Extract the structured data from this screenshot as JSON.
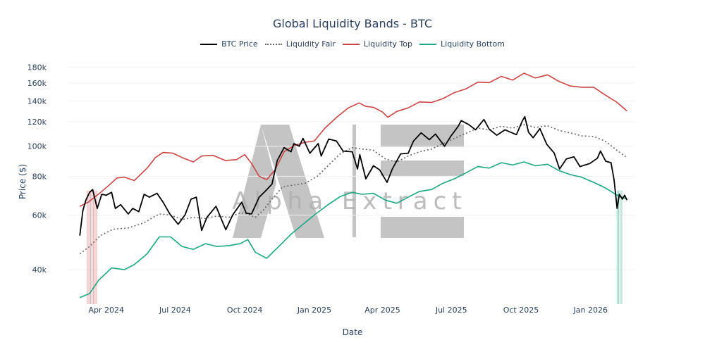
{
  "title": "Global Liquidity Bands - BTC",
  "legend": [
    {
      "name": "BTC Price",
      "color": "#000000",
      "style": "solid"
    },
    {
      "name": "Liquidity Fair",
      "color": "#666666",
      "style": "dotted"
    },
    {
      "name": "Liquidity Top",
      "color": "#cc4444",
      "style": "solid"
    },
    {
      "name": "Liquidity Bottom",
      "color": "#1aa882",
      "style": "solid"
    }
  ],
  "watermark": {
    "text": "Alpha Extract",
    "logo": "AE"
  },
  "chart_data": {
    "type": "line",
    "title": "Global Liquidity Bands - BTC",
    "xlabel": "Date",
    "ylabel": "Price ($)",
    "yscale": "log",
    "ylim": [
      30000,
      190000
    ],
    "xlim": [
      "2024-02-10",
      "2026-02-28"
    ],
    "x_ticks": [
      {
        "label": "Apr 2024",
        "date": "2024-04-01"
      },
      {
        "label": "Jul 2024",
        "date": "2024-07-01"
      },
      {
        "label": "Oct 2024",
        "date": "2024-10-01"
      },
      {
        "label": "Jan 2025",
        "date": "2025-01-01"
      },
      {
        "label": "Apr 2025",
        "date": "2025-04-01"
      },
      {
        "label": "Jul 2025",
        "date": "2025-07-01"
      },
      {
        "label": "Oct 2025",
        "date": "2025-10-01"
      },
      {
        "label": "Jan 2026",
        "date": "2026-01-01"
      }
    ],
    "y_ticks": [
      {
        "label": "40k",
        "value": 40000
      },
      {
        "label": "60k",
        "value": 60000
      },
      {
        "label": "80k",
        "value": 80000
      },
      {
        "label": "100k",
        "value": 100000
      },
      {
        "label": "120k",
        "value": 120000
      },
      {
        "label": "140k",
        "value": 140000
      },
      {
        "label": "160k",
        "value": 160000
      },
      {
        "label": "180k",
        "value": 180000
      }
    ],
    "highlight_bands": [
      {
        "start": "2024-03-07",
        "end": "2024-03-20",
        "color": "#e8a0a0",
        "meaning": "above top"
      },
      {
        "start": "2026-02-05",
        "end": "2026-02-12",
        "color": "#8fd6bd",
        "meaning": "below bottom"
      }
    ],
    "series": [
      {
        "name": "BTC Price",
        "color": "#000000",
        "style": "solid",
        "points": [
          [
            "2024-02-26",
            51500
          ],
          [
            "2024-03-01",
            62000
          ],
          [
            "2024-03-05",
            67000
          ],
          [
            "2024-03-10",
            71000
          ],
          [
            "2024-03-14",
            72500
          ],
          [
            "2024-03-20",
            63000
          ],
          [
            "2024-03-26",
            70000
          ],
          [
            "2024-04-01",
            69500
          ],
          [
            "2024-04-08",
            71000
          ],
          [
            "2024-04-13",
            63000
          ],
          [
            "2024-04-20",
            64800
          ],
          [
            "2024-04-30",
            60500
          ],
          [
            "2024-05-06",
            63000
          ],
          [
            "2024-05-14",
            61500
          ],
          [
            "2024-05-21",
            70000
          ],
          [
            "2024-05-28",
            68500
          ],
          [
            "2024-06-07",
            70500
          ],
          [
            "2024-06-15",
            66000
          ],
          [
            "2024-06-24",
            60500
          ],
          [
            "2024-07-05",
            56000
          ],
          [
            "2024-07-14",
            60000
          ],
          [
            "2024-07-22",
            67500
          ],
          [
            "2024-07-29",
            68500
          ],
          [
            "2024-08-05",
            53500
          ],
          [
            "2024-08-12",
            59000
          ],
          [
            "2024-08-24",
            64000
          ],
          [
            "2024-09-06",
            53800
          ],
          [
            "2024-09-15",
            60000
          ],
          [
            "2024-09-27",
            66000
          ],
          [
            "2024-10-03",
            60800
          ],
          [
            "2024-10-10",
            60500
          ],
          [
            "2024-10-20",
            68500
          ],
          [
            "2024-10-29",
            72000
          ],
          [
            "2024-11-06",
            75500
          ],
          [
            "2024-11-13",
            90000
          ],
          [
            "2024-11-22",
            99000
          ],
          [
            "2024-12-01",
            96000
          ],
          [
            "2024-12-05",
            102000
          ],
          [
            "2024-12-12",
            100000
          ],
          [
            "2024-12-17",
            106000
          ],
          [
            "2024-12-26",
            95000
          ],
          [
            "2025-01-06",
            102000
          ],
          [
            "2025-01-10",
            93000
          ],
          [
            "2025-01-20",
            105500
          ],
          [
            "2025-01-30",
            104000
          ],
          [
            "2025-02-08",
            96500
          ],
          [
            "2025-02-20",
            96000
          ],
          [
            "2025-02-27",
            84500
          ],
          [
            "2025-03-02",
            94000
          ],
          [
            "2025-03-10",
            78500
          ],
          [
            "2025-03-20",
            86500
          ],
          [
            "2025-03-28",
            84000
          ],
          [
            "2025-04-07",
            76500
          ],
          [
            "2025-04-14",
            84500
          ],
          [
            "2025-04-25",
            94500
          ],
          [
            "2025-05-05",
            95000
          ],
          [
            "2025-05-12",
            104000
          ],
          [
            "2025-05-22",
            110500
          ],
          [
            "2025-06-02",
            105000
          ],
          [
            "2025-06-10",
            109500
          ],
          [
            "2025-06-22",
            100000
          ],
          [
            "2025-06-30",
            107500
          ],
          [
            "2025-07-10",
            116000
          ],
          [
            "2025-07-14",
            121000
          ],
          [
            "2025-07-24",
            117500
          ],
          [
            "2025-08-02",
            113000
          ],
          [
            "2025-08-13",
            122000
          ],
          [
            "2025-08-20",
            113500
          ],
          [
            "2025-08-30",
            108500
          ],
          [
            "2025-09-10",
            113000
          ],
          [
            "2025-09-25",
            109000
          ],
          [
            "2025-10-03",
            121000
          ],
          [
            "2025-10-06",
            124500
          ],
          [
            "2025-10-11",
            111000
          ],
          [
            "2025-10-17",
            106500
          ],
          [
            "2025-10-26",
            114000
          ],
          [
            "2025-11-04",
            101500
          ],
          [
            "2025-11-14",
            95000
          ],
          [
            "2025-11-21",
            84500
          ],
          [
            "2025-11-30",
            91000
          ],
          [
            "2025-12-10",
            92500
          ],
          [
            "2025-12-18",
            86000
          ],
          [
            "2025-12-31",
            88000
          ],
          [
            "2026-01-10",
            91500
          ],
          [
            "2026-01-14",
            96500
          ],
          [
            "2026-01-21",
            89500
          ],
          [
            "2026-01-28",
            88500
          ],
          [
            "2026-02-01",
            78000
          ],
          [
            "2026-02-05",
            63000
          ],
          [
            "2026-02-08",
            70000
          ],
          [
            "2026-02-12",
            67500
          ],
          [
            "2026-02-15",
            69500
          ],
          [
            "2026-02-18",
            67000
          ]
        ]
      },
      {
        "name": "Liquidity Fair",
        "color": "#666666",
        "style": "dotted",
        "points": [
          [
            "2024-02-26",
            45000
          ],
          [
            "2024-03-10",
            47500
          ],
          [
            "2024-03-24",
            51500
          ],
          [
            "2024-04-10",
            54000
          ],
          [
            "2024-04-30",
            54500
          ],
          [
            "2024-05-20",
            56500
          ],
          [
            "2024-06-10",
            60500
          ],
          [
            "2024-06-25",
            60000
          ],
          [
            "2024-07-10",
            58000
          ],
          [
            "2024-07-25",
            59000
          ],
          [
            "2024-08-10",
            58500
          ],
          [
            "2024-08-25",
            59500
          ],
          [
            "2024-09-10",
            59000
          ],
          [
            "2024-09-25",
            61000
          ],
          [
            "2024-10-05",
            60500
          ],
          [
            "2024-10-15",
            59000
          ],
          [
            "2024-10-25",
            62000
          ],
          [
            "2024-11-05",
            67000
          ],
          [
            "2024-11-20",
            74000
          ],
          [
            "2024-12-05",
            75000
          ],
          [
            "2024-12-20",
            76000
          ],
          [
            "2025-01-05",
            80000
          ],
          [
            "2025-01-20",
            87000
          ],
          [
            "2025-02-05",
            95000
          ],
          [
            "2025-02-20",
            99000
          ],
          [
            "2025-03-05",
            98000
          ],
          [
            "2025-03-20",
            97000
          ],
          [
            "2025-04-05",
            91000
          ],
          [
            "2025-04-20",
            89000
          ],
          [
            "2025-05-05",
            93000
          ],
          [
            "2025-05-20",
            96000
          ],
          [
            "2025-06-05",
            98000
          ],
          [
            "2025-06-20",
            102000
          ],
          [
            "2025-07-05",
            106000
          ],
          [
            "2025-07-20",
            110000
          ],
          [
            "2025-08-05",
            114500
          ],
          [
            "2025-08-20",
            113000
          ],
          [
            "2025-09-05",
            116000
          ],
          [
            "2025-09-20",
            114500
          ],
          [
            "2025-10-05",
            117500
          ],
          [
            "2025-10-20",
            115000
          ],
          [
            "2025-11-05",
            116500
          ],
          [
            "2025-11-20",
            112500
          ],
          [
            "2025-12-05",
            110500
          ],
          [
            "2025-12-20",
            108000
          ],
          [
            "2026-01-05",
            107500
          ],
          [
            "2026-01-20",
            104000
          ],
          [
            "2026-02-05",
            97000
          ],
          [
            "2026-02-18",
            92000
          ]
        ]
      },
      {
        "name": "Liquidity Top",
        "color": "#cc4444",
        "style": "solid",
        "points": [
          [
            "2024-02-26",
            64000
          ],
          [
            "2024-03-08",
            66000
          ],
          [
            "2024-03-20",
            69500
          ],
          [
            "2024-04-05",
            75000
          ],
          [
            "2024-04-15",
            79000
          ],
          [
            "2024-04-25",
            79500
          ],
          [
            "2024-05-08",
            77500
          ],
          [
            "2024-05-25",
            85000
          ],
          [
            "2024-06-05",
            92000
          ],
          [
            "2024-06-15",
            95500
          ],
          [
            "2024-06-28",
            95000
          ],
          [
            "2024-07-10",
            92000
          ],
          [
            "2024-07-25",
            89000
          ],
          [
            "2024-08-05",
            93000
          ],
          [
            "2024-08-20",
            93500
          ],
          [
            "2024-09-05",
            90000
          ],
          [
            "2024-09-20",
            90500
          ],
          [
            "2024-10-01",
            94000
          ],
          [
            "2024-10-10",
            88000
          ],
          [
            "2024-10-20",
            80000
          ],
          [
            "2024-10-30",
            78000
          ],
          [
            "2024-11-10",
            84000
          ],
          [
            "2024-11-22",
            96000
          ],
          [
            "2024-12-05",
            100500
          ],
          [
            "2024-12-20",
            103000
          ],
          [
            "2025-01-01",
            104000
          ],
          [
            "2025-01-15",
            114500
          ],
          [
            "2025-02-01",
            125000
          ],
          [
            "2025-02-15",
            133000
          ],
          [
            "2025-03-01",
            138000
          ],
          [
            "2025-03-10",
            134500
          ],
          [
            "2025-03-20",
            133500
          ],
          [
            "2025-04-01",
            129000
          ],
          [
            "2025-04-08",
            124000
          ],
          [
            "2025-04-20",
            129500
          ],
          [
            "2025-05-05",
            133000
          ],
          [
            "2025-05-20",
            139000
          ],
          [
            "2025-06-05",
            138500
          ],
          [
            "2025-06-20",
            142500
          ],
          [
            "2025-07-05",
            149000
          ],
          [
            "2025-07-20",
            153000
          ],
          [
            "2025-08-05",
            161000
          ],
          [
            "2025-08-20",
            160500
          ],
          [
            "2025-09-05",
            168000
          ],
          [
            "2025-09-20",
            163500
          ],
          [
            "2025-10-05",
            172000
          ],
          [
            "2025-10-20",
            166000
          ],
          [
            "2025-11-05",
            170000
          ],
          [
            "2025-11-20",
            162000
          ],
          [
            "2025-12-05",
            156500
          ],
          [
            "2025-12-20",
            155000
          ],
          [
            "2026-01-05",
            155000
          ],
          [
            "2026-01-20",
            146500
          ],
          [
            "2026-02-05",
            138500
          ],
          [
            "2026-02-18",
            130000
          ]
        ]
      },
      {
        "name": "Liquidity Bottom",
        "color": "#1aa882",
        "style": "solid",
        "points": [
          [
            "2024-02-26",
            32500
          ],
          [
            "2024-03-10",
            33500
          ],
          [
            "2024-03-22",
            37000
          ],
          [
            "2024-04-08",
            40500
          ],
          [
            "2024-04-25",
            40000
          ],
          [
            "2024-05-08",
            41500
          ],
          [
            "2024-05-25",
            45000
          ],
          [
            "2024-06-10",
            51000
          ],
          [
            "2024-06-25",
            51000
          ],
          [
            "2024-07-10",
            47500
          ],
          [
            "2024-07-25",
            46500
          ],
          [
            "2024-08-10",
            48500
          ],
          [
            "2024-08-25",
            47500
          ],
          [
            "2024-09-10",
            47800
          ],
          [
            "2024-09-25",
            48500
          ],
          [
            "2024-10-05",
            50000
          ],
          [
            "2024-10-15",
            45500
          ],
          [
            "2024-10-30",
            43500
          ],
          [
            "2024-11-15",
            47500
          ],
          [
            "2024-12-01",
            52000
          ],
          [
            "2024-12-15",
            55500
          ],
          [
            "2025-01-01",
            60000
          ],
          [
            "2025-01-20",
            65000
          ],
          [
            "2025-02-05",
            69000
          ],
          [
            "2025-02-20",
            71000
          ],
          [
            "2025-03-05",
            70000
          ],
          [
            "2025-03-20",
            70500
          ],
          [
            "2025-04-05",
            67000
          ],
          [
            "2025-04-20",
            65500
          ],
          [
            "2025-05-05",
            68500
          ],
          [
            "2025-05-20",
            71500
          ],
          [
            "2025-06-05",
            72500
          ],
          [
            "2025-06-20",
            76000
          ],
          [
            "2025-07-05",
            78500
          ],
          [
            "2025-07-20",
            82000
          ],
          [
            "2025-08-05",
            86000
          ],
          [
            "2025-08-20",
            85000
          ],
          [
            "2025-09-05",
            88500
          ],
          [
            "2025-09-20",
            87000
          ],
          [
            "2025-10-05",
            89000
          ],
          [
            "2025-10-20",
            86500
          ],
          [
            "2025-11-05",
            87500
          ],
          [
            "2025-11-20",
            83500
          ],
          [
            "2025-12-05",
            81000
          ],
          [
            "2025-12-20",
            79500
          ],
          [
            "2026-01-05",
            76500
          ],
          [
            "2026-01-20",
            73500
          ],
          [
            "2026-02-05",
            69500
          ],
          [
            "2026-02-18",
            67500
          ]
        ]
      }
    ]
  }
}
